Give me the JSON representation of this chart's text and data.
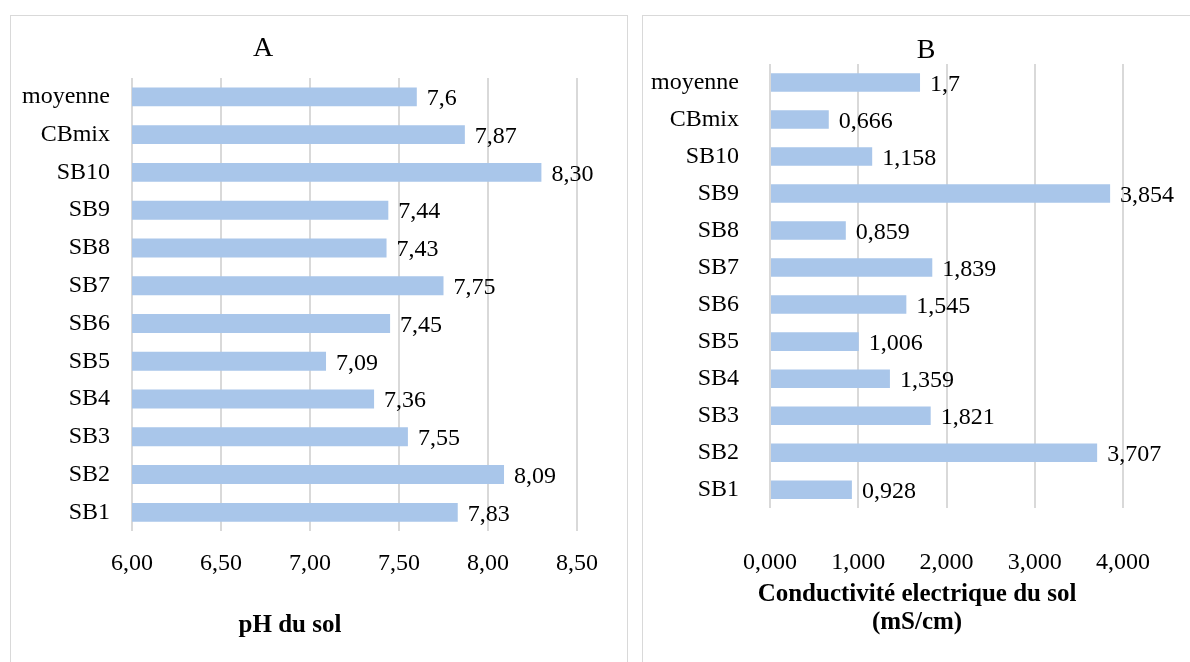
{
  "chart_data": [
    {
      "type": "bar",
      "orientation": "horizontal",
      "title": "A",
      "xlabel": "pH du sol",
      "categories": [
        "moyenne",
        "CBmix",
        "SB10",
        "SB9",
        "SB8",
        "SB7",
        "SB6",
        "SB5",
        "SB4",
        "SB3",
        "SB2",
        "SB1"
      ],
      "values": [
        7.6,
        7.87,
        8.3,
        7.44,
        7.43,
        7.75,
        7.45,
        7.09,
        7.36,
        7.55,
        8.09,
        7.83
      ],
      "value_labels": [
        "7,6",
        "7,87",
        "8,30",
        "7,44",
        "7,43",
        "7,75",
        "7,45",
        "7,09",
        "7,36",
        "7,55",
        "8,09",
        "7,83"
      ],
      "color": "#a9c6ea",
      "xlim": [
        6,
        8.5
      ],
      "xticks": [
        {
          "value": 6,
          "label": "6,00"
        },
        {
          "value": 6.5,
          "label": "6,50"
        },
        {
          "value": 7,
          "label": "7,00"
        },
        {
          "value": 7.5,
          "label": "7,50"
        },
        {
          "value": 8,
          "label": "8,00"
        },
        {
          "value": 8.5,
          "label": "8,50"
        }
      ],
      "grid": "x"
    },
    {
      "type": "bar",
      "orientation": "horizontal",
      "title": "B",
      "xlabel": "Conductivité electrique du sol (mS/cm)",
      "categories": [
        "moyenne",
        "CBmix",
        "SB10",
        "SB9",
        "SB8",
        "SB7",
        "SB6",
        "SB5",
        "SB4",
        "SB3",
        "SB2",
        "SB1"
      ],
      "values": [
        1.7,
        0.666,
        1.158,
        3.854,
        0.859,
        1.839,
        1.545,
        1.006,
        1.359,
        1.821,
        3.707,
        0.928
      ],
      "value_labels": [
        "1,7",
        "0,666",
        "1,158",
        "3,854",
        "0,859",
        "1,839",
        "1,545",
        "1,006",
        "1,359",
        "1,821",
        "3,707",
        "0,928"
      ],
      "color": "#a9c6ea",
      "xlim": [
        0,
        4
      ],
      "xticks": [
        {
          "value": 0,
          "label": "0,000"
        },
        {
          "value": 1,
          "label": "1,000"
        },
        {
          "value": 2,
          "label": "2,000"
        },
        {
          "value": 3,
          "label": "3,000"
        },
        {
          "value": 4,
          "label": "4,000"
        }
      ],
      "grid": "x"
    }
  ]
}
